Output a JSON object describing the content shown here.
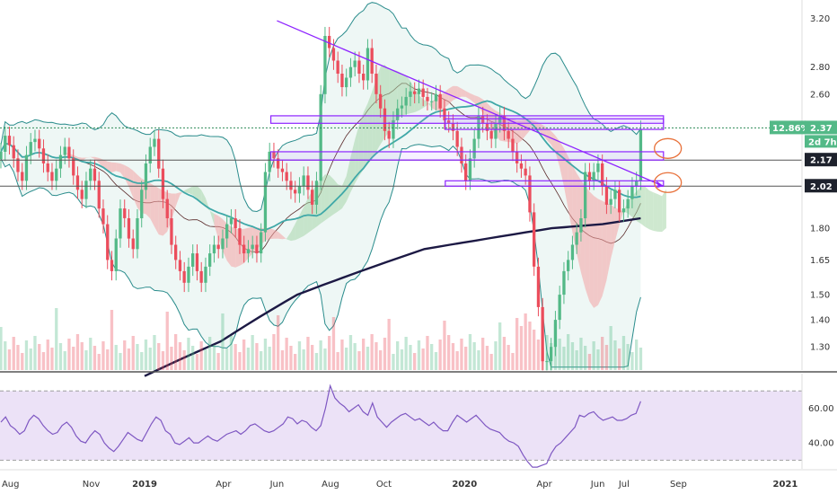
{
  "chart_data": [
    {
      "type": "candlestick",
      "panel": "price",
      "scale": "log",
      "ylim": [
        1.22,
        3.3
      ],
      "y_ticks": [
        "3.20",
        "2.80",
        "2.60",
        "2.37",
        "2.17",
        "2.02",
        "1.80",
        "1.65",
        "1.50",
        "1.40",
        "1.30"
      ],
      "x_tick_labels": [
        "Aug",
        "Nov",
        "2019",
        "Apr",
        "Jun",
        "Aug",
        "Oct",
        "2020",
        "Apr",
        "Jun",
        "Jul",
        "Sep",
        "2021"
      ],
      "x_tick_dates": [
        "2018-08-01",
        "2018-11-01",
        "2019-01-01",
        "2019-04-01",
        "2019-06-01",
        "2019-08-01",
        "2019-10-01",
        "2020-01-01",
        "2020-04-01",
        "2020-06-01",
        "2020-07-01",
        "2020-09-01",
        "2021-01-01"
      ],
      "x_start_date": "2018-07-20",
      "x_end_date": "2021-01-20",
      "last_date": "2020-07-20",
      "closes": [
        2.22,
        2.32,
        2.26,
        2.18,
        2.1,
        2.05,
        2.2,
        2.28,
        2.3,
        2.24,
        2.15,
        2.1,
        2.05,
        2.12,
        2.2,
        2.25,
        2.18,
        2.08,
        2.0,
        1.95,
        2.05,
        2.12,
        2.05,
        1.9,
        1.82,
        1.65,
        1.6,
        1.75,
        1.9,
        1.85,
        1.75,
        1.7,
        1.85,
        2.0,
        2.15,
        2.25,
        2.3,
        2.12,
        1.95,
        1.85,
        1.72,
        1.65,
        1.6,
        1.55,
        1.62,
        1.68,
        1.6,
        1.55,
        1.62,
        1.68,
        1.72,
        1.7,
        1.75,
        1.82,
        1.85,
        1.8,
        1.72,
        1.68,
        1.7,
        1.72,
        1.68,
        1.78,
        2.1,
        2.22,
        2.18,
        2.12,
        2.1,
        2.05,
        2.0,
        1.98,
        2.02,
        2.08,
        2.0,
        1.92,
        2.05,
        2.6,
        3.05,
        2.95,
        2.85,
        2.75,
        2.65,
        2.72,
        2.8,
        2.85,
        2.75,
        2.7,
        2.95,
        2.75,
        2.6,
        2.5,
        2.35,
        2.3,
        2.42,
        2.5,
        2.52,
        2.58,
        2.62,
        2.6,
        2.64,
        2.58,
        2.55,
        2.55,
        2.6,
        2.5,
        2.42,
        2.4,
        2.35,
        2.25,
        2.15,
        2.05,
        2.18,
        2.3,
        2.45,
        2.4,
        2.35,
        2.3,
        2.4,
        2.45,
        2.35,
        2.3,
        2.22,
        2.15,
        2.12,
        2.08,
        1.88,
        1.62,
        1.45,
        1.25,
        1.25,
        1.3,
        1.4,
        1.5,
        1.6,
        1.65,
        1.72,
        1.78,
        1.85,
        2.1,
        2.05,
        2.1,
        2.15,
        2.02,
        1.92,
        1.95,
        2.0,
        1.88,
        1.9,
        1.95,
        2.02,
        2.05,
        2.36
      ],
      "ma200": [
        1.2,
        1.22,
        1.24,
        1.26,
        1.28,
        1.3,
        1.32,
        1.35,
        1.38,
        1.41,
        1.44,
        1.47,
        1.5,
        1.52,
        1.54,
        1.56,
        1.58,
        1.6,
        1.62,
        1.64,
        1.66,
        1.68,
        1.7,
        1.71,
        1.72,
        1.73,
        1.74,
        1.75,
        1.76,
        1.77,
        1.78,
        1.79,
        1.8,
        1.805,
        1.81,
        1.815,
        1.82,
        1.83,
        1.84,
        1.85
      ],
      "horizontal_levels": [
        2.37,
        2.17,
        2.02
      ],
      "last_price_tag": {
        "percent": "12.86%",
        "value": "2.37",
        "timer": "2d 7h"
      },
      "levels_tags": [
        {
          "value": "2.17"
        },
        {
          "value": "2.02"
        }
      ],
      "annotations": [
        "descending trendline",
        "resistance boxes",
        "circled levels"
      ],
      "indicators": [
        "Bollinger Bands",
        "Ichimoku Cloud",
        "MA 200",
        "MA 50",
        "Volume"
      ],
      "colors": {
        "up": "#53b987",
        "down": "#eb4d5c",
        "trendline": "#8e24ff",
        "ma200": "#1c1944",
        "ma50": "#3fa8a8",
        "bands": "#2a8c8c",
        "cloud_up": "#a5d6a7",
        "cloud_down": "#f4a3a3",
        "circle": "#e8713a",
        "rsi_line": "#7e57c2",
        "rsi_bg": "#e7dbf5"
      }
    },
    {
      "type": "line",
      "panel": "rsi",
      "ylim": [
        25,
        80
      ],
      "y_ticks": [
        "60.00",
        "40.00"
      ],
      "bands": [
        70,
        30
      ],
      "values": [
        52,
        55,
        50,
        48,
        45,
        47,
        53,
        56,
        54,
        50,
        47,
        45,
        46,
        50,
        52,
        49,
        44,
        41,
        40,
        44,
        47,
        45,
        40,
        37,
        35,
        38,
        42,
        46,
        44,
        42,
        41,
        46,
        51,
        55,
        53,
        47,
        45,
        40,
        39,
        41,
        43,
        40,
        40,
        42,
        44,
        42,
        41,
        43,
        45,
        46,
        47,
        45,
        47,
        50,
        51,
        49,
        47,
        46,
        47,
        49,
        51,
        55,
        54,
        51,
        53,
        52,
        49,
        47,
        50,
        60,
        73,
        66,
        63,
        61,
        58,
        60,
        62,
        58,
        56,
        63,
        55,
        52,
        49,
        52,
        54,
        56,
        57,
        55,
        53,
        54,
        52,
        50,
        52,
        49,
        47,
        47,
        52,
        56,
        54,
        52,
        54,
        56,
        53,
        50,
        48,
        47,
        46,
        43,
        41,
        40,
        38,
        33,
        29,
        26,
        26,
        27,
        28,
        34,
        38,
        40,
        43,
        46,
        49,
        56,
        55,
        57,
        58,
        55,
        53,
        54,
        55,
        53,
        53,
        54,
        56,
        57,
        64
      ]
    }
  ],
  "date_labels": [
    "Aug",
    "Nov",
    "2019",
    "Apr",
    "Jun",
    "Aug",
    "Oct",
    "2020",
    "Apr",
    "Jun",
    "Jul",
    "Sep",
    "2021"
  ]
}
